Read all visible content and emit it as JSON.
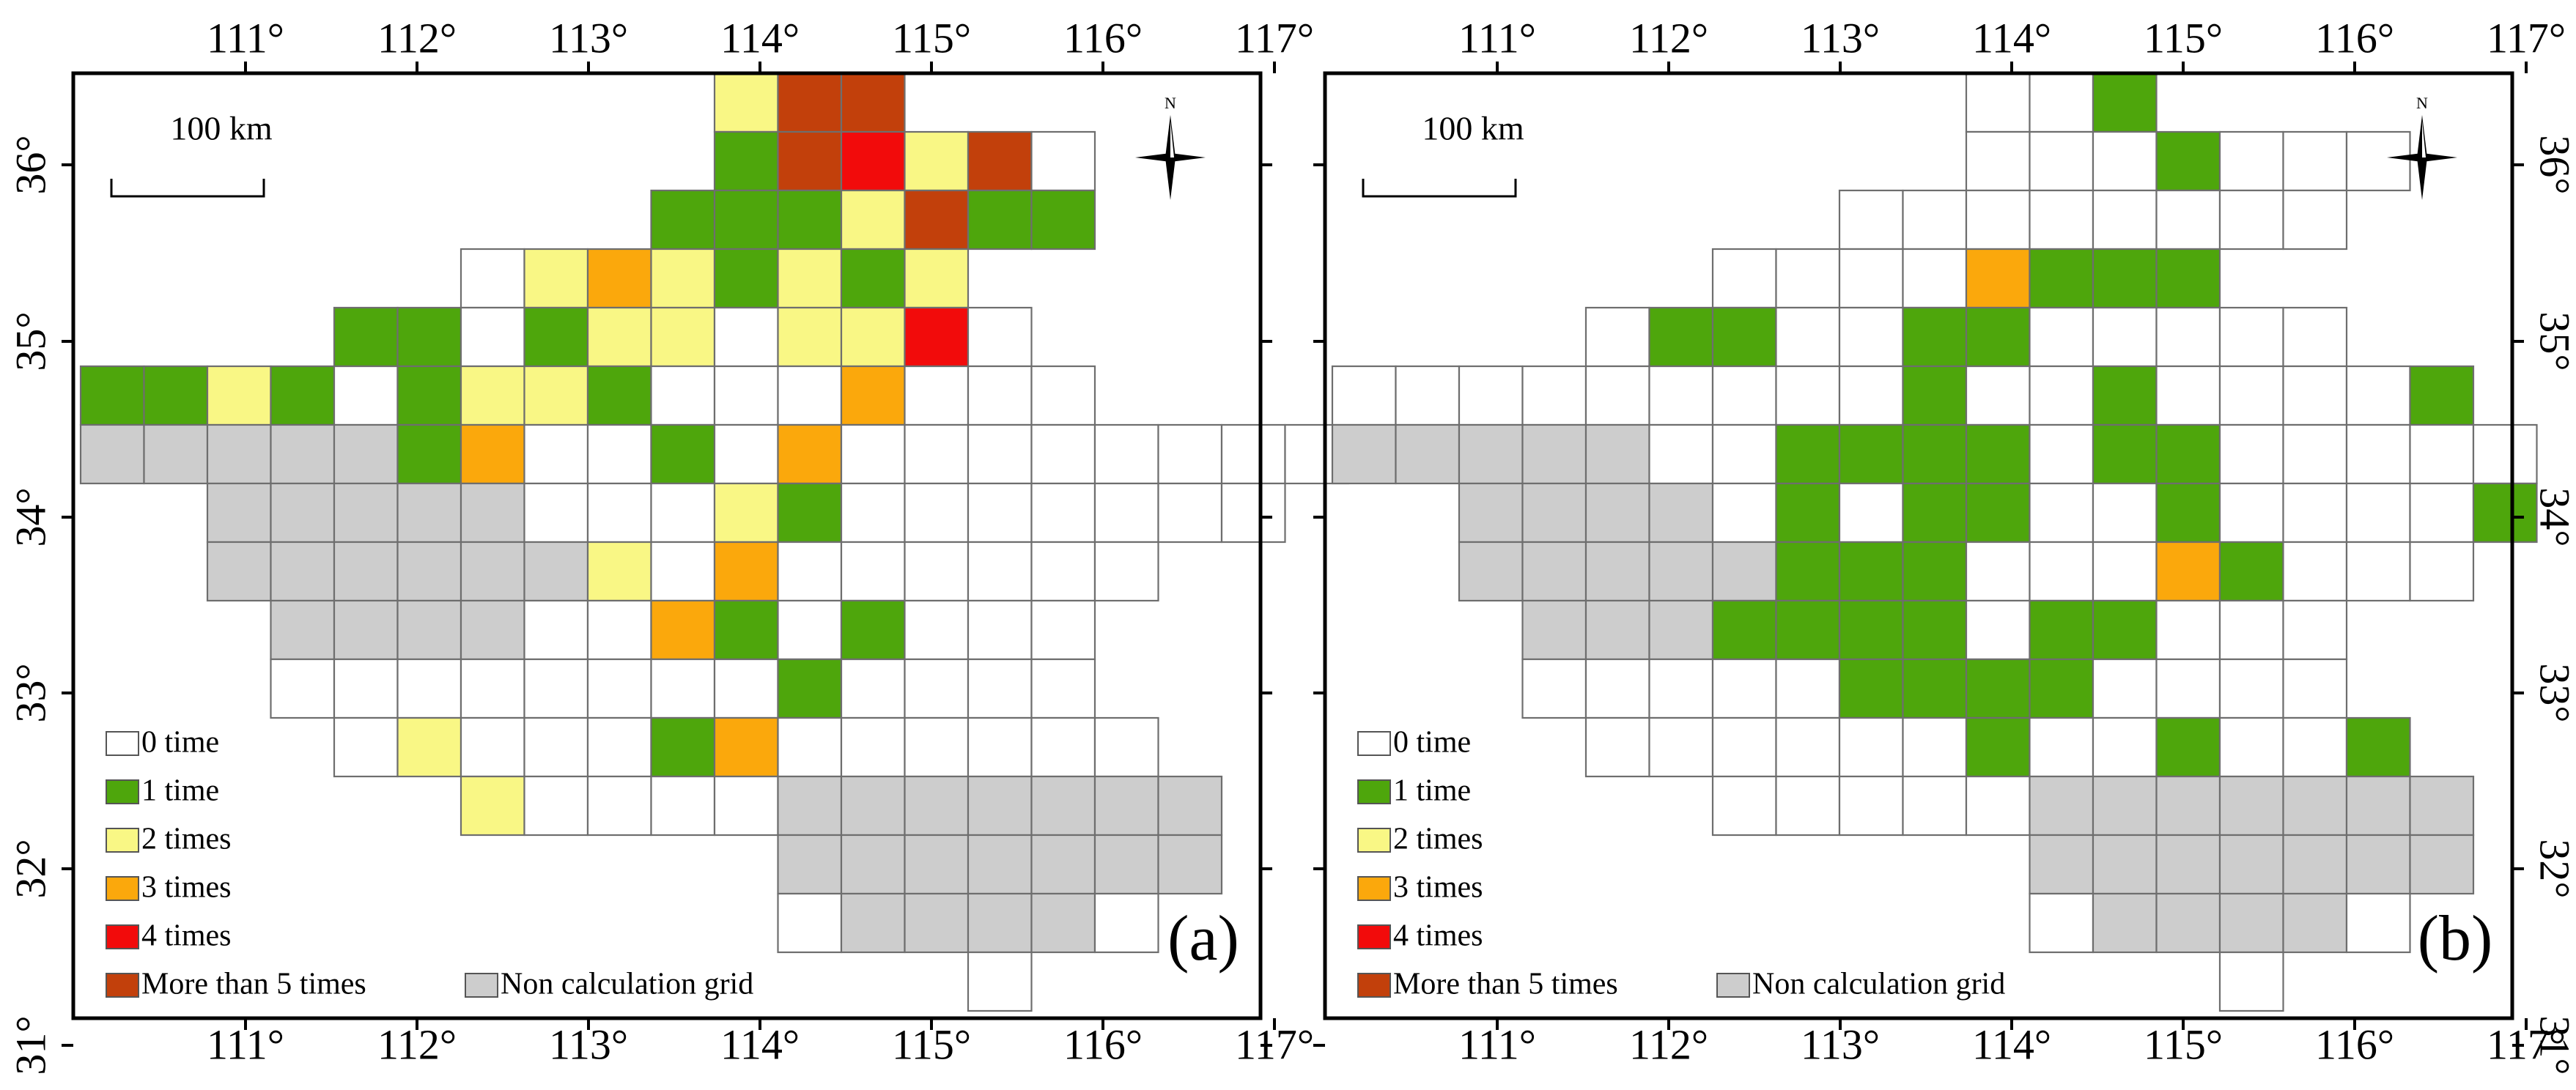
{
  "panels": [
    {
      "id": "a",
      "label": "(a)",
      "north_label": "N",
      "scalebar_label": "100  km",
      "top_ticks": [
        "111°",
        "112°",
        "113°",
        "114°",
        "115°",
        "116°",
        "117°"
      ],
      "bottom_ticks": [
        "111°",
        "112°",
        "113°",
        "114°",
        "115°",
        "116°",
        "117°"
      ],
      "left_ticks": [
        "36°",
        "35°",
        "34°",
        "33°",
        "32°",
        "31°"
      ],
      "right_ticks": [],
      "grid_rows": [
        "..........YXX.......",
        "..........GXRYXW....",
        ".........GGGYXGG....",
        "......WYOYGYGY......",
        "....GGWGYYWYYRW.....",
        "GGYGWGYYGWWWOWWW....",
        "NNNNNGOWWGWOWWWWWWWW",
        "..NNNNNWWWYGWWWWWWW.",
        "..NNNNNNYWOWWWWWW...",
        "...NNNNWWOGWGWWW....",
        "...WWWWWWWWGWWWW....",
        "....WYWWWGOWWWWWW...",
        "......YWWWWNNNNNNN..",
        "...........NNNNNNN..",
        "...........WNNNNW...",
        "..............W.....",
        "...................."
      ]
    },
    {
      "id": "b",
      "label": "(b)",
      "north_label": "N",
      "scalebar_label": "100  km",
      "top_ticks": [
        "111°",
        "112°",
        "113°",
        "114°",
        "115°",
        "116°",
        "117°"
      ],
      "bottom_ticks": [
        "111°",
        "112°",
        "113°",
        "114°",
        "115°",
        "116°",
        "117°"
      ],
      "left_ticks": [],
      "right_ticks": [
        "36°",
        "35°",
        "34°",
        "33°",
        "32°",
        "31°"
      ],
      "grid_rows": [
        "..........WWG.......",
        "..........WWWGWWW...",
        "........WWWWWWWW....",
        "......WWWWOGGG......",
        "....WGGWWGGWWWWW....",
        "WWWWWWWWWGWWGWWWWG..",
        "NNNNNWWGGGGWGGWWWWW.",
        "..NNNNWGWGGWWGWWWWG.",
        "..NNNNNGGGWWWOGWWW..",
        "...NNNGGGGWGGWWW....",
        "...WWWWWGGGGWWWW....",
        "....WWWWWWGWWGWWG...",
        "......WWWWWNNNNNNN..",
        "...........NNNNNNN..",
        "...........WNNNNW...",
        "..............W.....",
        "...................."
      ]
    }
  ],
  "legend": {
    "items": [
      {
        "code": "W",
        "label": "0 time",
        "color": "#ffffff"
      },
      {
        "code": "G",
        "label": "1 time",
        "color": "#4ea60c"
      },
      {
        "code": "Y",
        "label": "2 times",
        "color": "#f9f785"
      },
      {
        "code": "O",
        "label": "3 times",
        "color": "#fba80c"
      },
      {
        "code": "R",
        "label": "4 times",
        "color": "#f20b0b"
      },
      {
        "code": "X",
        "label": "More than 5 times",
        "color": "#c2400b"
      }
    ],
    "non_calc": {
      "code": "N",
      "label": "Non calculation grid",
      "color": "#cdcdcd"
    }
  }
}
